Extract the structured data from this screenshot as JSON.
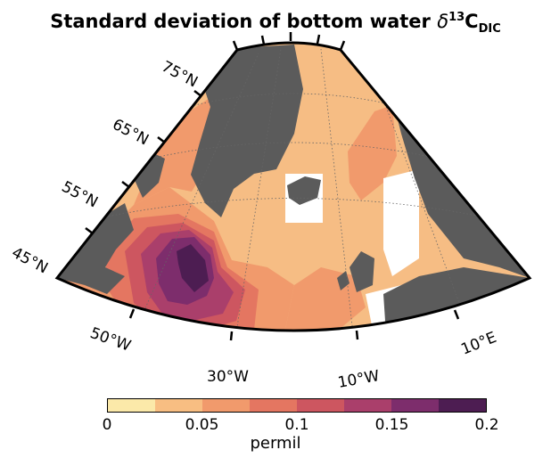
{
  "title": {
    "prefix": "Standard deviation of bottom water ",
    "symbol": "δ",
    "sup": "13",
    "main": "C",
    "sub": "DIC"
  },
  "lat_labels": [
    "75°N",
    "65°N",
    "55°N",
    "45°N"
  ],
  "lon_labels": [
    "50°W",
    "30°W",
    "10°W",
    "10°E"
  ],
  "colorbar": {
    "label": "permil",
    "ticks": [
      "0",
      "0.05",
      "0.1",
      "0.15",
      "0.2"
    ],
    "range": [
      0,
      0.2
    ],
    "levels": [
      0,
      0.025,
      0.05,
      0.075,
      0.1,
      0.125,
      0.15,
      0.175,
      0.2
    ],
    "colors": [
      "#fbe9a9",
      "#f8be82",
      "#f19a6c",
      "#e47661",
      "#cd5660",
      "#aa3f6b",
      "#7d2d6c",
      "#4d1d52"
    ]
  },
  "colors": {
    "land": "#5b5b5b",
    "ocean_background": "#f6bd84",
    "graticule": "#666666"
  }
}
